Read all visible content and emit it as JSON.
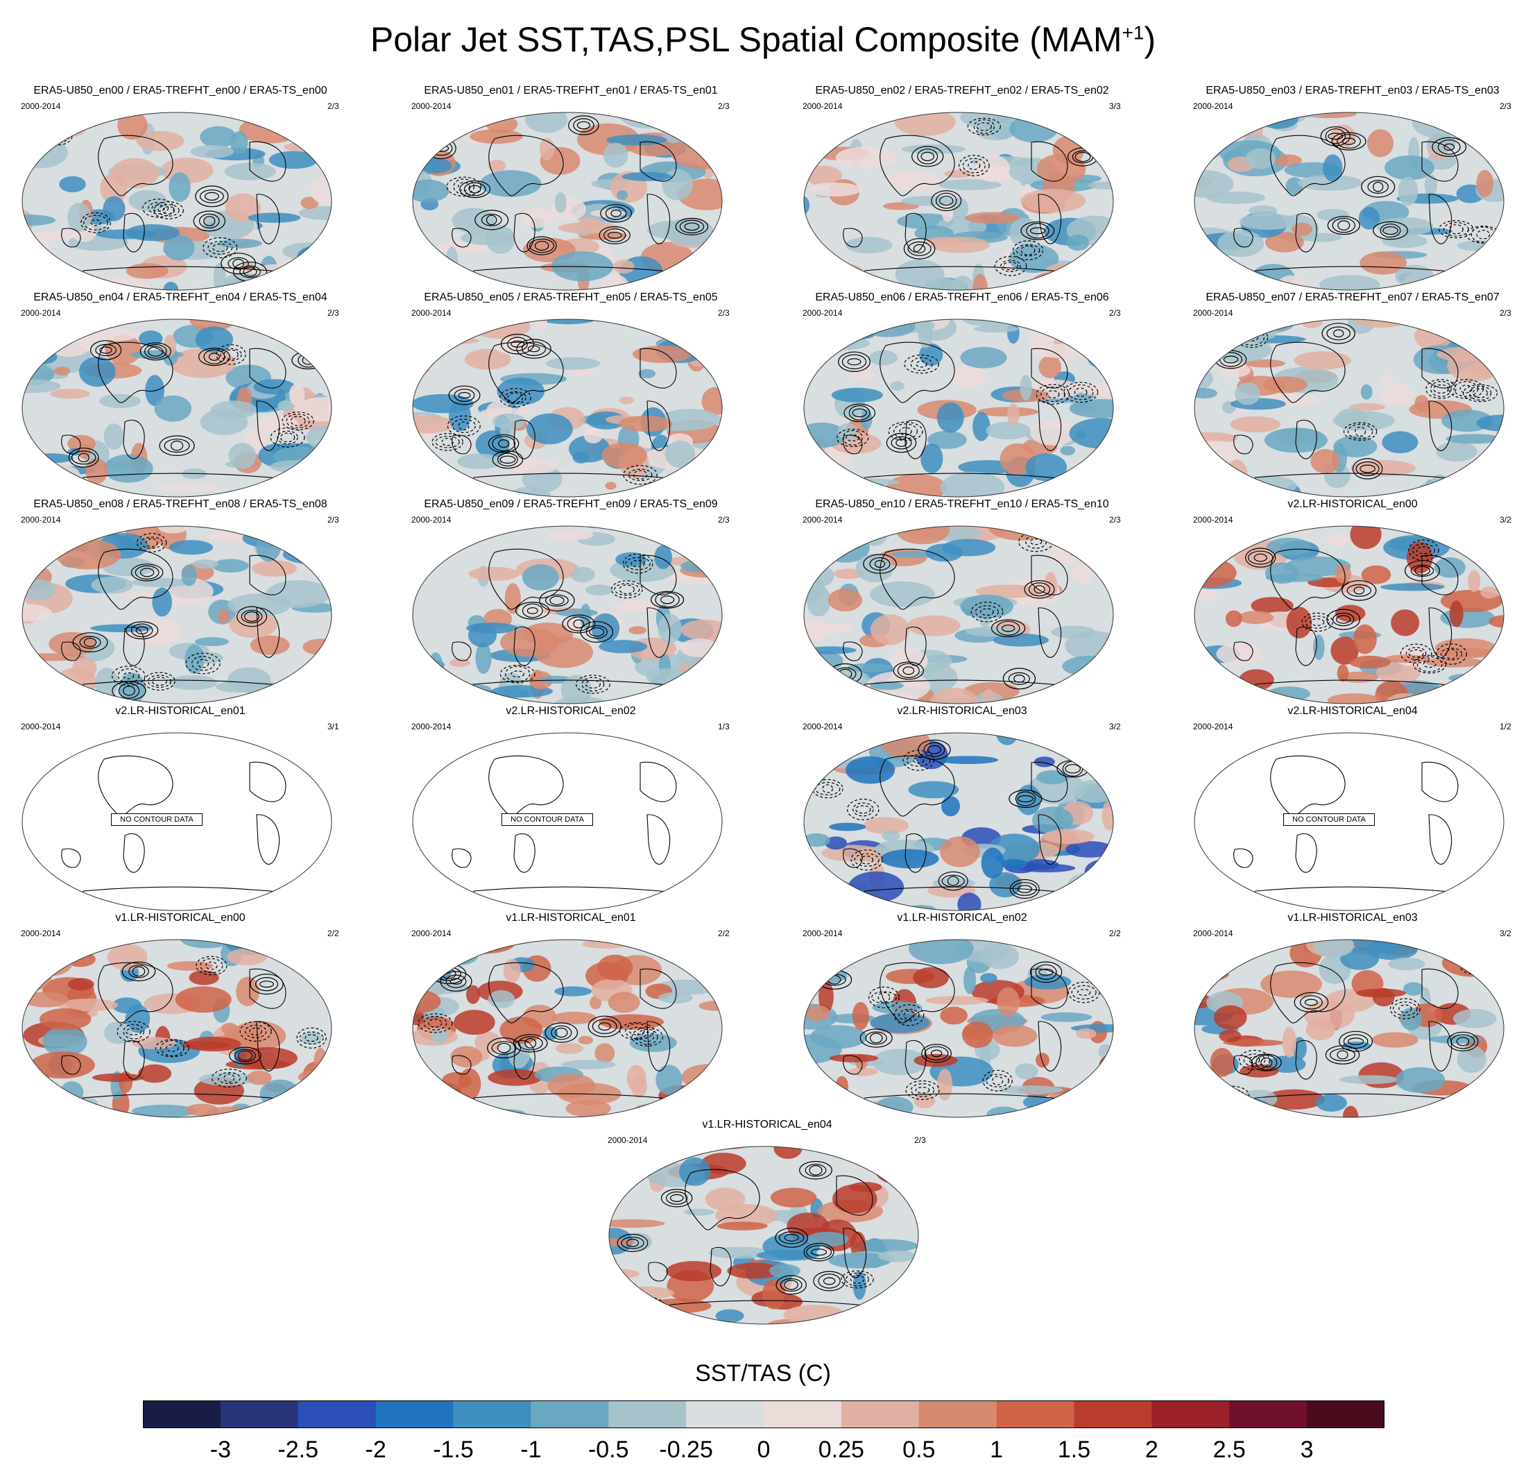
{
  "figure": {
    "title": "Polar Jet SST,TAS,PSL Spatial Composite (MAM",
    "title_superscript": "+1",
    "title_close": ")"
  },
  "panels": [
    {
      "title": "ERA5-U850_en00 / ERA5-TREFHT_en00 / ERA5-TS_en00",
      "period": "2000-2014",
      "ratio": "2/3",
      "style": "era5"
    },
    {
      "title": "ERA5-U850_en01 / ERA5-TREFHT_en01 / ERA5-TS_en01",
      "period": "2000-2014",
      "ratio": "2/3",
      "style": "era5"
    },
    {
      "title": "ERA5-U850_en02 / ERA5-TREFHT_en02 / ERA5-TS_en02",
      "period": "2000-2014",
      "ratio": "3/3",
      "style": "era5"
    },
    {
      "title": "ERA5-U850_en03 / ERA5-TREFHT_en03 / ERA5-TS_en03",
      "period": "2000-2014",
      "ratio": "2/3",
      "style": "era5"
    },
    {
      "title": "ERA5-U850_en04 / ERA5-TREFHT_en04 / ERA5-TS_en04",
      "period": "2000-2014",
      "ratio": "2/3",
      "style": "era5"
    },
    {
      "title": "ERA5-U850_en05 / ERA5-TREFHT_en05 / ERA5-TS_en05",
      "period": "2000-2014",
      "ratio": "2/3",
      "style": "era5"
    },
    {
      "title": "ERA5-U850_en06 / ERA5-TREFHT_en06 / ERA5-TS_en06",
      "period": "2000-2014",
      "ratio": "2/3",
      "style": "era5"
    },
    {
      "title": "ERA5-U850_en07 / ERA5-TREFHT_en07 / ERA5-TS_en07",
      "period": "2000-2014",
      "ratio": "2/3",
      "style": "era5"
    },
    {
      "title": "ERA5-U850_en08 / ERA5-TREFHT_en08 / ERA5-TS_en08",
      "period": "2000-2014",
      "ratio": "2/3",
      "style": "era5"
    },
    {
      "title": "ERA5-U850_en09 / ERA5-TREFHT_en09 / ERA5-TS_en09",
      "period": "2000-2014",
      "ratio": "2/3",
      "style": "era5"
    },
    {
      "title": "ERA5-U850_en10 / ERA5-TREFHT_en10 / ERA5-TS_en10",
      "period": "2000-2014",
      "ratio": "2/3",
      "style": "era5"
    },
    {
      "title": "v2.LR-HISTORICAL_en00",
      "period": "2000-2014",
      "ratio": "3/2",
      "style": "warm"
    },
    {
      "title": "v2.LR-HISTORICAL_en01",
      "period": "2000-2014",
      "ratio": "3/1",
      "style": "empty",
      "nodata": "NO CONTOUR DATA"
    },
    {
      "title": "v2.LR-HISTORICAL_en02",
      "period": "2000-2014",
      "ratio": "1/3",
      "style": "empty",
      "nodata": "NO CONTOUR DATA"
    },
    {
      "title": "v2.LR-HISTORICAL_en03",
      "period": "2000-2014",
      "ratio": "3/2",
      "style": "cool"
    },
    {
      "title": "v2.LR-HISTORICAL_en04",
      "period": "2000-2014",
      "ratio": "1/2",
      "style": "empty",
      "nodata": "NO CONTOUR DATA"
    },
    {
      "title": "v1.LR-HISTORICAL_en00",
      "period": "2000-2014",
      "ratio": "2/2",
      "style": "mixed"
    },
    {
      "title": "v1.LR-HISTORICAL_en01",
      "period": "2000-2014",
      "ratio": "2/2",
      "style": "mixed"
    },
    {
      "title": "v1.LR-HISTORICAL_en02",
      "period": "2000-2014",
      "ratio": "2/2",
      "style": "mixed"
    },
    {
      "title": "v1.LR-HISTORICAL_en03",
      "period": "2000-2014",
      "ratio": "3/2",
      "style": "mixed"
    },
    {
      "title": "v1.LR-HISTORICAL_en04",
      "period": "2000-2014",
      "ratio": "2/3",
      "style": "mixed"
    }
  ],
  "colorbar": {
    "title": "SST/TAS (C)",
    "colors": [
      "#1a1c48",
      "#293378",
      "#2a4fb8",
      "#1f74bd",
      "#3e8fbf",
      "#6aa8c2",
      "#a6c3cc",
      "#d9dee0",
      "#ecdcda",
      "#e2b0a2",
      "#d88a70",
      "#cf6448",
      "#ba3c2c",
      "#9c1f2a",
      "#71102a",
      "#4a0c1c"
    ],
    "tick_labels": [
      "-3",
      "-2.5",
      "-2",
      "-1.5",
      "-1",
      "-0.5",
      "-0.25",
      "0",
      "0.25",
      "0.5",
      "1",
      "1.5",
      "2",
      "2.5",
      "3"
    ]
  }
}
